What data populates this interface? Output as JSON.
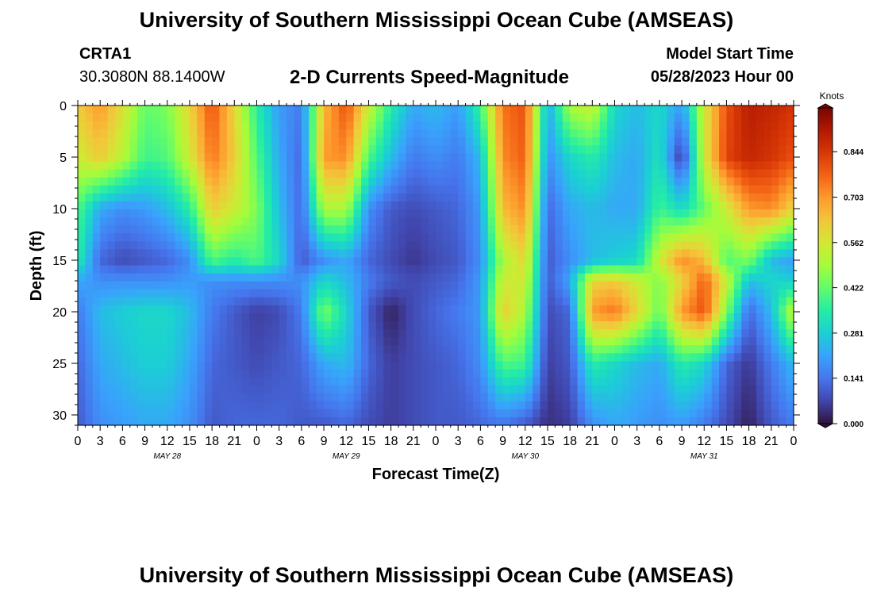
{
  "header": {
    "title": "University of Southern Mississippi Ocean Cube (AMSEAS)",
    "station": "CRTA1",
    "coords": "30.3080N  88.1400W",
    "subtitle": "2-D Currents Speed-Magnitude",
    "model_start_label": "Model Start Time",
    "model_start_value": "05/28/2023 Hour 00"
  },
  "footer": {
    "title": "University of Southern Mississippi Ocean Cube (AMSEAS)"
  },
  "chart_data": {
    "type": "heatmap",
    "title": "2-D Currents Speed-Magnitude",
    "xlabel": "Forecast Time(Z)",
    "ylabel": "Depth (ft)",
    "x_range_hours": [
      0,
      96
    ],
    "y_range": [
      0,
      31
    ],
    "x_ticks": [
      "0",
      "3",
      "6",
      "9",
      "12",
      "15",
      "18",
      "21",
      "0",
      "3",
      "6",
      "9",
      "12",
      "15",
      "18",
      "21",
      "0",
      "3",
      "6",
      "9",
      "12",
      "15",
      "18",
      "21",
      "0",
      "3",
      "6",
      "9",
      "12",
      "15",
      "18",
      "21",
      "0"
    ],
    "y_ticks": [
      0,
      5,
      10,
      15,
      20,
      25,
      30
    ],
    "day_labels": [
      {
        "label": "MAY 28",
        "hour": 12
      },
      {
        "label": "MAY 29",
        "hour": 36
      },
      {
        "label": "MAY 30",
        "hour": 60
      },
      {
        "label": "MAY 31",
        "hour": 84
      }
    ],
    "colorbar": {
      "unit": "Knots",
      "ticks": [
        "0.844",
        "0.703",
        "0.562",
        "0.422",
        "0.281",
        "0.141",
        "0.000"
      ],
      "min": 0.0,
      "max": 0.98,
      "colors": [
        "#30123b",
        "#4145ab",
        "#4675ed",
        "#39a2fc",
        "#1bcfd4",
        "#24eca6",
        "#61fc6c",
        "#a4fc3b",
        "#d1e834",
        "#f3c63a",
        "#fe9b2d",
        "#f36315",
        "#d93806",
        "#b11901",
        "#7a0402"
      ]
    },
    "grid": false,
    "speed_samples": {
      "note_depths_ft": [
        0,
        5,
        10,
        15,
        17,
        20,
        25,
        31
      ],
      "hours": [
        0,
        3,
        6,
        9,
        12,
        15,
        18,
        21,
        24,
        27,
        30,
        33,
        36,
        39,
        42,
        45,
        48,
        51,
        54,
        57,
        60,
        63,
        66,
        69,
        72,
        75,
        78,
        81,
        84,
        87,
        90,
        93,
        96
      ],
      "rows": [
        [
          0.62,
          0.7,
          0.58,
          0.42,
          0.45,
          0.6,
          0.8,
          0.6,
          0.35,
          0.2,
          0.15,
          0.65,
          0.8,
          0.55,
          0.35,
          0.22,
          0.25,
          0.2,
          0.38,
          0.75,
          0.8,
          0.22,
          0.5,
          0.55,
          0.3,
          0.25,
          0.3,
          0.2,
          0.55,
          0.8,
          0.9,
          0.88,
          0.85
        ],
        [
          0.55,
          0.62,
          0.52,
          0.38,
          0.4,
          0.55,
          0.75,
          0.62,
          0.4,
          0.22,
          0.12,
          0.7,
          0.72,
          0.4,
          0.25,
          0.15,
          0.18,
          0.15,
          0.25,
          0.72,
          0.78,
          0.18,
          0.3,
          0.35,
          0.25,
          0.22,
          0.32,
          0.05,
          0.55,
          0.82,
          0.88,
          0.85,
          0.8
        ],
        [
          0.4,
          0.22,
          0.18,
          0.2,
          0.25,
          0.35,
          0.62,
          0.55,
          0.45,
          0.25,
          0.12,
          0.5,
          0.5,
          0.18,
          0.1,
          0.08,
          0.1,
          0.12,
          0.2,
          0.65,
          0.72,
          0.12,
          0.22,
          0.25,
          0.22,
          0.22,
          0.38,
          0.3,
          0.42,
          0.55,
          0.7,
          0.72,
          0.6
        ],
        [
          0.35,
          0.12,
          0.08,
          0.1,
          0.12,
          0.18,
          0.4,
          0.35,
          0.4,
          0.3,
          0.1,
          0.18,
          0.22,
          0.12,
          0.08,
          0.05,
          0.08,
          0.1,
          0.18,
          0.5,
          0.6,
          0.1,
          0.18,
          0.25,
          0.28,
          0.3,
          0.55,
          0.72,
          0.65,
          0.4,
          0.45,
          0.25,
          0.2
        ],
        [
          0.22,
          0.18,
          0.18,
          0.18,
          0.18,
          0.2,
          0.18,
          0.18,
          0.18,
          0.18,
          0.18,
          0.3,
          0.25,
          0.15,
          0.1,
          0.08,
          0.1,
          0.12,
          0.2,
          0.55,
          0.55,
          0.1,
          0.22,
          0.6,
          0.62,
          0.55,
          0.45,
          0.6,
          0.78,
          0.55,
          0.25,
          0.3,
          0.28
        ],
        [
          0.15,
          0.25,
          0.28,
          0.3,
          0.3,
          0.25,
          0.15,
          0.1,
          0.06,
          0.08,
          0.15,
          0.45,
          0.3,
          0.1,
          0.02,
          0.08,
          0.12,
          0.15,
          0.2,
          0.62,
          0.5,
          0.08,
          0.12,
          0.7,
          0.75,
          0.6,
          0.42,
          0.7,
          0.8,
          0.45,
          0.12,
          0.25,
          0.55
        ],
        [
          0.12,
          0.22,
          0.25,
          0.28,
          0.28,
          0.22,
          0.12,
          0.1,
          0.08,
          0.1,
          0.12,
          0.22,
          0.25,
          0.12,
          0.06,
          0.08,
          0.1,
          0.12,
          0.18,
          0.4,
          0.38,
          0.06,
          0.1,
          0.35,
          0.3,
          0.25,
          0.22,
          0.35,
          0.3,
          0.12,
          0.05,
          0.15,
          0.25
        ],
        [
          0.1,
          0.18,
          0.2,
          0.22,
          0.22,
          0.18,
          0.1,
          0.12,
          0.12,
          0.12,
          0.1,
          0.1,
          0.12,
          0.08,
          0.06,
          0.08,
          0.1,
          0.1,
          0.12,
          0.14,
          0.1,
          0.04,
          0.06,
          0.18,
          0.22,
          0.2,
          0.18,
          0.2,
          0.15,
          0.08,
          0.02,
          0.1,
          0.15
        ]
      ]
    }
  }
}
